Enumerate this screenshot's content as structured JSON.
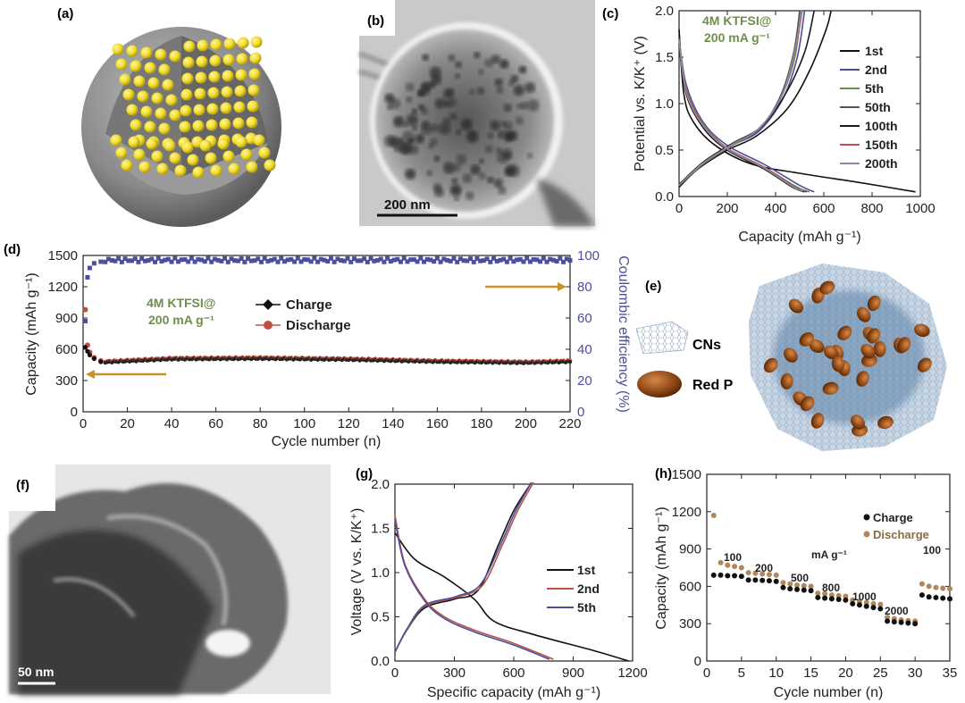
{
  "panels": {
    "a": "(a)",
    "b": "(b)",
    "c": "(c)",
    "d": "(d)",
    "e": "(e)",
    "f": "(f)",
    "g": "(g)",
    "h": "(h)"
  },
  "images": {
    "b_scale": "200 nm",
    "f_scale": "50 nm",
    "e_legend": [
      "CNs",
      "Red P"
    ]
  },
  "colors": {
    "sphere": "#8a8a8a",
    "particle": "#f2dc2c",
    "green_text": "#6e8f4a",
    "blue": "#4a4fa0",
    "red": "#c0503e",
    "arrow": "#c9902a",
    "brown_dot": "#b0865a"
  },
  "chart_data": [
    {
      "id": "c",
      "type": "line",
      "annotation": [
        "4M KTFSI@",
        "200 mA g⁻¹"
      ],
      "xlabel": "Capacity (mAh g⁻¹)",
      "ylabel": "Potential vs. K/K⁺ (V)",
      "xlim": [
        0,
        1000
      ],
      "ylim": [
        0,
        2.0
      ],
      "xticks": [
        "0",
        "200",
        "400",
        "600",
        "800",
        "1000"
      ],
      "yticks": [
        "0.0",
        "0.5",
        "1.0",
        "1.5",
        "2.0"
      ],
      "series": [
        {
          "name": "1st",
          "color": "#111111",
          "discharge": [
            [
              0,
              1.8
            ],
            [
              20,
              1.1
            ],
            [
              60,
              0.8
            ],
            [
              150,
              0.55
            ],
            [
              300,
              0.35
            ],
            [
              500,
              0.25
            ],
            [
              750,
              0.15
            ],
            [
              980,
              0.05
            ]
          ],
          "charge": [
            [
              0,
              0.1
            ],
            [
              80,
              0.3
            ],
            [
              200,
              0.5
            ],
            [
              320,
              0.65
            ],
            [
              450,
              0.95
            ],
            [
              540,
              1.35
            ],
            [
              610,
              1.8
            ],
            [
              630,
              2.0
            ]
          ]
        },
        {
          "name": "2nd",
          "color": "#4b4f9a",
          "discharge": [
            [
              0,
              1.7
            ],
            [
              30,
              1.2
            ],
            [
              100,
              0.8
            ],
            [
              200,
              0.55
            ],
            [
              350,
              0.35
            ],
            [
              500,
              0.12
            ],
            [
              560,
              0.05
            ]
          ],
          "charge": [
            [
              0,
              0.12
            ],
            [
              100,
              0.35
            ],
            [
              220,
              0.55
            ],
            [
              330,
              0.7
            ],
            [
              430,
              1.05
            ],
            [
              490,
              1.5
            ],
            [
              520,
              2.0
            ]
          ]
        },
        {
          "name": "5th",
          "color": "#6f8c4a",
          "discharge": [
            [
              0,
              1.7
            ],
            [
              30,
              1.15
            ],
            [
              100,
              0.78
            ],
            [
              200,
              0.52
            ],
            [
              350,
              0.32
            ],
            [
              490,
              0.1
            ],
            [
              540,
              0.05
            ]
          ],
          "charge": [
            [
              0,
              0.12
            ],
            [
              100,
              0.35
            ],
            [
              220,
              0.55
            ],
            [
              330,
              0.72
            ],
            [
              420,
              1.05
            ],
            [
              480,
              1.5
            ],
            [
              505,
              2.0
            ]
          ]
        },
        {
          "name": "50th",
          "color": "#555555",
          "discharge": [
            [
              0,
              1.65
            ],
            [
              30,
              1.1
            ],
            [
              100,
              0.75
            ],
            [
              200,
              0.5
            ],
            [
              350,
              0.3
            ],
            [
              480,
              0.1
            ],
            [
              530,
              0.05
            ]
          ],
          "charge": [
            [
              0,
              0.12
            ],
            [
              100,
              0.36
            ],
            [
              220,
              0.56
            ],
            [
              330,
              0.72
            ],
            [
              420,
              1.08
            ],
            [
              475,
              1.55
            ],
            [
              500,
              2.0
            ]
          ]
        },
        {
          "name": "100th",
          "color": "#1a1a1a",
          "discharge": [
            [
              0,
              1.65
            ],
            [
              30,
              1.1
            ],
            [
              100,
              0.74
            ],
            [
              200,
              0.5
            ],
            [
              350,
              0.3
            ],
            [
              470,
              0.1
            ],
            [
              520,
              0.05
            ]
          ],
          "charge": [
            [
              0,
              0.13
            ],
            [
              100,
              0.37
            ],
            [
              220,
              0.57
            ],
            [
              340,
              0.75
            ],
            [
              440,
              1.1
            ],
            [
              520,
              1.55
            ],
            [
              560,
              2.0
            ]
          ]
        },
        {
          "name": "150th",
          "color": "#c0504d",
          "discharge": [
            [
              0,
              1.7
            ],
            [
              30,
              1.15
            ],
            [
              100,
              0.77
            ],
            [
              200,
              0.52
            ],
            [
              350,
              0.32
            ],
            [
              480,
              0.1
            ],
            [
              520,
              0.06
            ]
          ],
          "charge": [
            [
              0,
              0.12
            ],
            [
              100,
              0.36
            ],
            [
              220,
              0.56
            ],
            [
              330,
              0.73
            ],
            [
              425,
              1.08
            ],
            [
              480,
              1.55
            ],
            [
              510,
              2.0
            ]
          ]
        },
        {
          "name": "200th",
          "color": "#8a8aa0",
          "discharge": [
            [
              0,
              1.68
            ],
            [
              30,
              1.12
            ],
            [
              100,
              0.76
            ],
            [
              200,
              0.51
            ],
            [
              350,
              0.31
            ],
            [
              475,
              0.1
            ],
            [
              515,
              0.06
            ]
          ],
          "charge": [
            [
              0,
              0.12
            ],
            [
              100,
              0.36
            ],
            [
              220,
              0.56
            ],
            [
              330,
              0.73
            ],
            [
              425,
              1.08
            ],
            [
              478,
              1.55
            ],
            [
              508,
              2.0
            ]
          ]
        }
      ]
    },
    {
      "id": "d",
      "type": "scatter",
      "annotation": [
        "4M KTFSI@",
        "200 mA g⁻¹"
      ],
      "xlabel": "Cycle number (n)",
      "ylabel": "Capacity (mAh g⁻¹)",
      "y2label": "Coulombic efficiency (%)",
      "xlim": [
        0,
        220
      ],
      "ylim": [
        0,
        1500
      ],
      "y2lim": [
        0,
        100
      ],
      "xticks": [
        "0",
        "20",
        "40",
        "60",
        "80",
        "100",
        "120",
        "140",
        "160",
        "180",
        "200",
        "220"
      ],
      "yticks": [
        "0",
        "300",
        "600",
        "900",
        "1200",
        "1500"
      ],
      "y2ticks": [
        "0",
        "20",
        "40",
        "60",
        "80",
        "100"
      ],
      "legend": [
        "Charge",
        "Discharge"
      ],
      "charge_start": [
        [
          1,
          620
        ],
        [
          2,
          580
        ],
        [
          3,
          545
        ],
        [
          5,
          510
        ],
        [
          8,
          480
        ]
      ],
      "discharge_start": [
        [
          1,
          980
        ],
        [
          2,
          640
        ],
        [
          3,
          570
        ],
        [
          5,
          520
        ],
        [
          8,
          490
        ]
      ],
      "capacity_plateau": [
        [
          10,
          475
        ],
        [
          40,
          505
        ],
        [
          80,
          510
        ],
        [
          120,
          500
        ],
        [
          160,
          480
        ],
        [
          200,
          470
        ],
        [
          220,
          480
        ]
      ],
      "ce_start": [
        [
          1,
          58
        ],
        [
          2,
          86
        ],
        [
          3,
          92
        ],
        [
          5,
          95
        ],
        [
          8,
          96
        ]
      ],
      "ce_plateau": 97
    },
    {
      "id": "g",
      "type": "line",
      "xlabel": "Specific capacity (mAh g⁻¹)",
      "ylabel": "Voltage (V vs. K/K⁺)",
      "xlim": [
        0,
        1200
      ],
      "ylim": [
        0,
        2.0
      ],
      "xticks": [
        "0",
        "300",
        "600",
        "900",
        "1200"
      ],
      "yticks": [
        "0.0",
        "0.5",
        "1.0",
        "1.5",
        "2.0"
      ],
      "series": [
        {
          "name": "1st",
          "color": "#111111",
          "discharge": [
            [
              0,
              1.45
            ],
            [
              100,
              1.15
            ],
            [
              250,
              0.95
            ],
            [
              400,
              0.7
            ],
            [
              500,
              0.45
            ],
            [
              700,
              0.3
            ],
            [
              1000,
              0.12
            ],
            [
              1180,
              0.0
            ]
          ],
          "charge": [
            [
              0,
              0.1
            ],
            [
              60,
              0.35
            ],
            [
              150,
              0.6
            ],
            [
              300,
              0.7
            ],
            [
              420,
              0.8
            ],
            [
              520,
              1.3
            ],
            [
              600,
              1.7
            ],
            [
              690,
              2.02
            ]
          ]
        },
        {
          "name": "2nd",
          "color": "#c0503e",
          "discharge": [
            [
              0,
              1.65
            ],
            [
              50,
              1.1
            ],
            [
              150,
              0.7
            ],
            [
              250,
              0.5
            ],
            [
              400,
              0.35
            ],
            [
              600,
              0.2
            ],
            [
              800,
              0.02
            ]
          ],
          "charge": [
            [
              0,
              0.1
            ],
            [
              60,
              0.35
            ],
            [
              150,
              0.62
            ],
            [
              310,
              0.72
            ],
            [
              440,
              0.85
            ],
            [
              540,
              1.3
            ],
            [
              620,
              1.7
            ],
            [
              700,
              2.02
            ]
          ]
        },
        {
          "name": "5th",
          "color": "#4a4fa0",
          "discharge": [
            [
              0,
              1.6
            ],
            [
              50,
              1.08
            ],
            [
              150,
              0.68
            ],
            [
              250,
              0.48
            ],
            [
              400,
              0.33
            ],
            [
              600,
              0.18
            ],
            [
              780,
              0.02
            ]
          ],
          "charge": [
            [
              0,
              0.1
            ],
            [
              60,
              0.36
            ],
            [
              150,
              0.63
            ],
            [
              310,
              0.73
            ],
            [
              430,
              0.86
            ],
            [
              530,
              1.3
            ],
            [
              610,
              1.7
            ],
            [
              690,
              2.02
            ]
          ]
        }
      ]
    },
    {
      "id": "h",
      "type": "scatter",
      "xlabel": "Cycle number (n)",
      "ylabel": "Capacity (mAh g⁻¹)",
      "xlim": [
        0,
        35
      ],
      "ylim": [
        0,
        1500
      ],
      "xticks": [
        "0",
        "5",
        "10",
        "15",
        "20",
        "25",
        "30",
        "35"
      ],
      "yticks": [
        "0",
        "300",
        "600",
        "900",
        "1200",
        "1500"
      ],
      "legend": [
        "Charge",
        "Discharge"
      ],
      "unit_label": "mA g⁻¹",
      "rate_labels": [
        "100",
        "200",
        "500",
        "800",
        "1000",
        "2000",
        "100"
      ],
      "charge": [
        [
          1,
          690
        ],
        [
          2,
          690
        ],
        [
          3,
          685
        ],
        [
          4,
          685
        ],
        [
          5,
          680
        ],
        [
          6,
          650
        ],
        [
          7,
          650
        ],
        [
          8,
          648
        ],
        [
          9,
          645
        ],
        [
          10,
          640
        ],
        [
          11,
          590
        ],
        [
          12,
          580
        ],
        [
          13,
          575
        ],
        [
          14,
          570
        ],
        [
          15,
          565
        ],
        [
          16,
          510
        ],
        [
          17,
          505
        ],
        [
          18,
          500
        ],
        [
          19,
          495
        ],
        [
          20,
          490
        ],
        [
          21,
          460
        ],
        [
          22,
          450
        ],
        [
          23,
          440
        ],
        [
          24,
          430
        ],
        [
          25,
          420
        ],
        [
          26,
          320
        ],
        [
          27,
          315
        ],
        [
          28,
          310
        ],
        [
          29,
          305
        ],
        [
          30,
          300
        ],
        [
          31,
          530
        ],
        [
          32,
          515
        ],
        [
          33,
          510
        ],
        [
          34,
          505
        ],
        [
          35,
          500
        ]
      ],
      "discharge": [
        [
          1,
          1170
        ],
        [
          2,
          790
        ],
        [
          3,
          770
        ],
        [
          4,
          760
        ],
        [
          5,
          750
        ],
        [
          6,
          710
        ],
        [
          7,
          705
        ],
        [
          8,
          700
        ],
        [
          9,
          695
        ],
        [
          10,
          690
        ],
        [
          11,
          630
        ],
        [
          12,
          620
        ],
        [
          13,
          610
        ],
        [
          14,
          605
        ],
        [
          15,
          600
        ],
        [
          16,
          545
        ],
        [
          17,
          540
        ],
        [
          18,
          530
        ],
        [
          19,
          525
        ],
        [
          20,
          520
        ],
        [
          21,
          490
        ],
        [
          22,
          480
        ],
        [
          23,
          470
        ],
        [
          24,
          460
        ],
        [
          25,
          455
        ],
        [
          26,
          350
        ],
        [
          27,
          340
        ],
        [
          28,
          330
        ],
        [
          29,
          325
        ],
        [
          30,
          320
        ],
        [
          31,
          620
        ],
        [
          32,
          600
        ],
        [
          33,
          590
        ],
        [
          34,
          585
        ],
        [
          35,
          580
        ]
      ]
    }
  ]
}
